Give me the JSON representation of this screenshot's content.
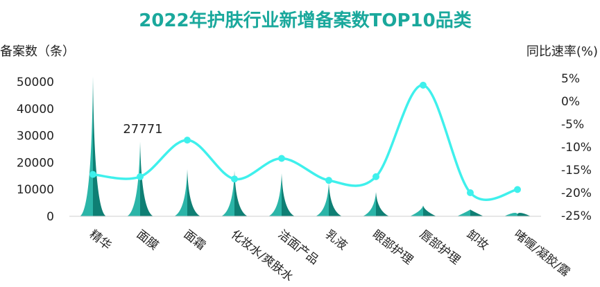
{
  "chart_data": {
    "type": "bar",
    "title": "2022年护肤行业新增备案数TOP10品类",
    "ylabel_left": "备案数（条）",
    "ylabel_right": "同比速率(%)",
    "categories": [
      "精华",
      "面膜",
      "面霜",
      "化妆水/爽肤水",
      "洁面产品",
      "乳液",
      "眼部护理",
      "唇部护理",
      "卸妆",
      "啫喱/凝胶/露"
    ],
    "left_axis": {
      "ylim": [
        0,
        50000
      ],
      "ticks": [
        "50000",
        "40000",
        "30000",
        "20000",
        "10000",
        "0"
      ]
    },
    "right_axis": {
      "ylim": [
        -25,
        5
      ],
      "ticks": [
        "5%",
        "0%",
        "-5%",
        "-10%",
        "-15%",
        "-20%",
        "-25%"
      ]
    },
    "grid": false,
    "series": [
      {
        "type": "spike-bar",
        "values": [
          52000,
          27771,
          17500,
          17000,
          16000,
          12500,
          9000,
          4000,
          2500,
          800
        ]
      },
      {
        "type": "smooth-line",
        "values": [
          -16,
          -16.5,
          -8.5,
          -17,
          -12.5,
          -17.3,
          -16.5,
          3.5,
          -20,
          -19.3
        ]
      }
    ],
    "data_labels": [
      {
        "category": "面膜",
        "text": "27771"
      }
    ],
    "colors": {
      "title": "#1aa89c",
      "bar_light": "#2bb5a8",
      "bar_dark": "#0f7f74",
      "line": "#3ff0ec"
    }
  }
}
